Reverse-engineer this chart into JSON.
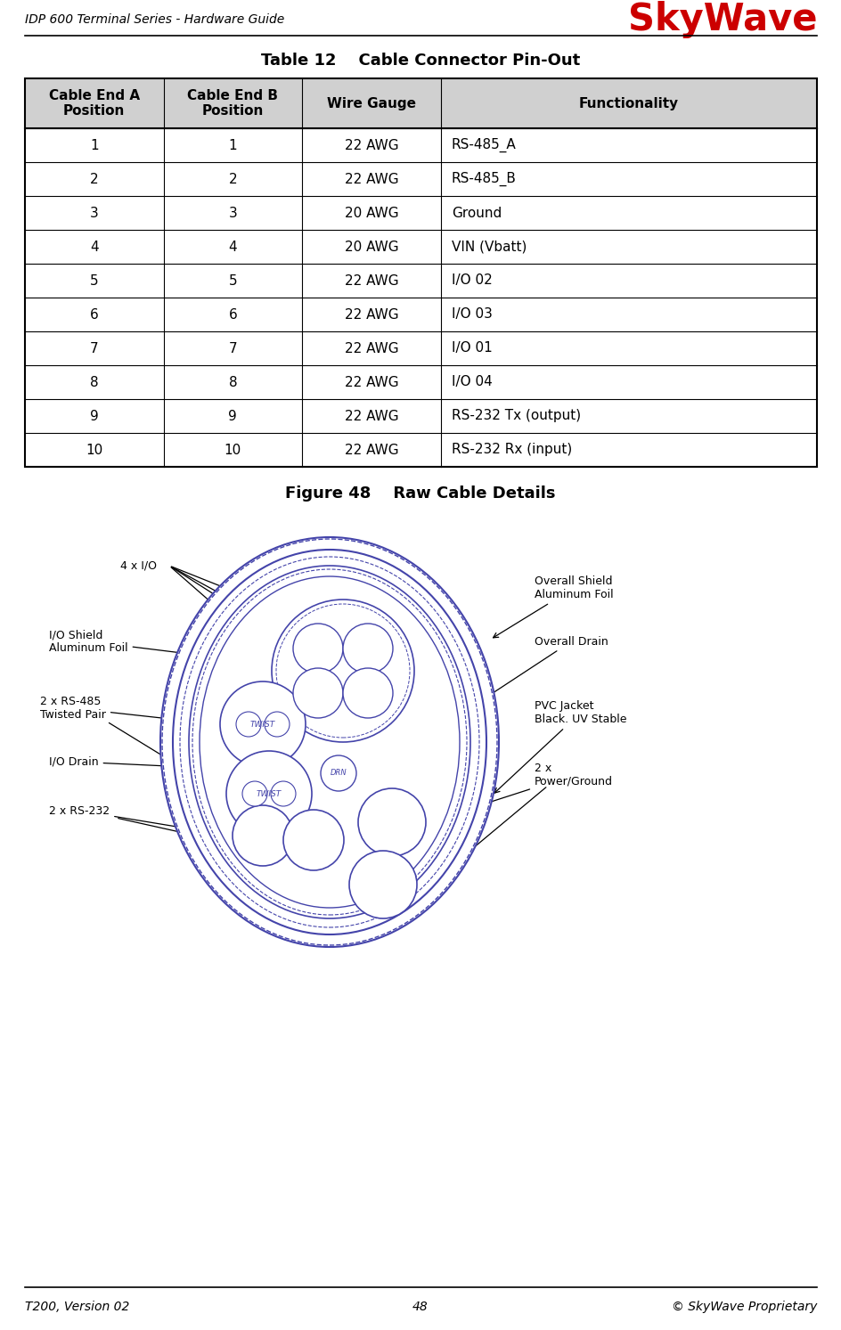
{
  "header_left": "IDP 600 Terminal Series - Hardware Guide",
  "header_logo": "SkyWave",
  "footer_left": "T200, Version 02",
  "footer_center": "48",
  "footer_right": "© SkyWave Proprietary",
  "table_title": "Table 12    Cable Connector Pin-Out",
  "figure_title": "Figure 48    Raw Cable Details",
  "table_headers": [
    "Cable End A\nPosition",
    "Cable End B\nPosition",
    "Wire Gauge",
    "Functionality"
  ],
  "table_data": [
    [
      "1",
      "1",
      "22 AWG",
      "RS-485_A"
    ],
    [
      "2",
      "2",
      "22 AWG",
      "RS-485_B"
    ],
    [
      "3",
      "3",
      "20 AWG",
      "Ground"
    ],
    [
      "4",
      "4",
      "20 AWG",
      "VIN (Vbatt)"
    ],
    [
      "5",
      "5",
      "22 AWG",
      "I/O 02"
    ],
    [
      "6",
      "6",
      "22 AWG",
      "I/O 03"
    ],
    [
      "7",
      "7",
      "22 AWG",
      "I/O 01"
    ],
    [
      "8",
      "8",
      "22 AWG",
      "I/O 04"
    ],
    [
      "9",
      "9",
      "22 AWG",
      "RS-232 Tx (output)"
    ],
    [
      "10",
      "10",
      "22 AWG",
      "RS-232 Rx (input)"
    ]
  ],
  "header_bg": "#d0d0d0",
  "border_color": "#000000",
  "logo_color": "#cc0000",
  "diagram_color": "#4444aa",
  "diagram_color_dark": "#222266"
}
